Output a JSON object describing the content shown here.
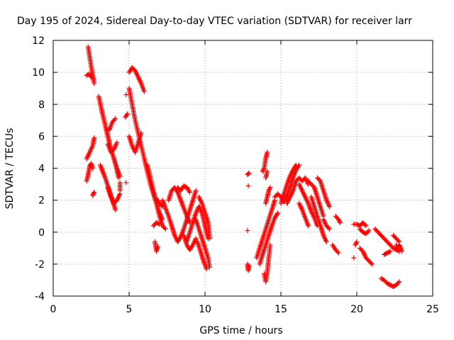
{
  "chart_data": {
    "type": "scatter",
    "title": "Day 195 of 2024, Sidereal Day-to-day VTEC variation (SDTVAR) for receiver larr",
    "xlabel": "GPS time / hours",
    "ylabel": "SDTVAR / TECUs",
    "xlim": [
      0,
      25
    ],
    "ylim": [
      -4,
      12
    ],
    "x_ticks": [
      0,
      5,
      10,
      15,
      20,
      25
    ],
    "y_ticks": [
      -4,
      -2,
      0,
      2,
      4,
      6,
      8,
      10,
      12
    ],
    "grid": true,
    "marker": "+",
    "marker_color": "#ff0000",
    "tracks": [
      [
        [
          2.3,
          11.6
        ],
        [
          2.4,
          11.0
        ],
        [
          2.5,
          10.4
        ],
        [
          2.6,
          9.8
        ],
        [
          2.7,
          9.3
        ]
      ],
      [
        [
          2.2,
          9.8
        ],
        [
          2.35,
          9.9
        ],
        [
          2.5,
          9.7
        ]
      ],
      [
        [
          2.2,
          4.6
        ],
        [
          2.4,
          5.0
        ],
        [
          2.6,
          5.4
        ],
        [
          2.7,
          5.9
        ]
      ],
      [
        [
          2.2,
          3.2
        ],
        [
          2.3,
          3.6
        ],
        [
          2.4,
          4.1
        ],
        [
          2.5,
          4.3
        ],
        [
          2.6,
          4.0
        ]
      ],
      [
        [
          2.6,
          2.3
        ],
        [
          2.7,
          2.5
        ]
      ],
      [
        [
          3.0,
          8.5
        ],
        [
          3.2,
          7.6
        ],
        [
          3.4,
          6.8
        ],
        [
          3.6,
          6.0
        ],
        [
          3.8,
          5.2
        ],
        [
          4.0,
          4.6
        ],
        [
          4.2,
          4.0
        ],
        [
          4.4,
          3.5
        ]
      ],
      [
        [
          3.1,
          4.2
        ],
        [
          3.3,
          3.7
        ],
        [
          3.5,
          3.2
        ],
        [
          3.7,
          2.6
        ],
        [
          3.9,
          2.0
        ],
        [
          4.1,
          1.4
        ]
      ],
      [
        [
          3.6,
          5.5
        ],
        [
          3.8,
          5.0
        ],
        [
          4.0,
          5.2
        ],
        [
          4.2,
          5.6
        ]
      ],
      [
        [
          3.6,
          2.8
        ],
        [
          3.8,
          2.2
        ],
        [
          4.0,
          1.8
        ],
        [
          4.2,
          2.0
        ],
        [
          4.4,
          2.4
        ]
      ],
      [
        [
          3.7,
          6.4
        ],
        [
          3.9,
          6.9
        ],
        [
          4.1,
          7.1
        ]
      ],
      [
        [
          4.0,
          4.6
        ],
        [
          4.2,
          3.9
        ],
        [
          4.3,
          3.4
        ]
      ],
      [
        [
          4.4,
          2.6
        ],
        [
          4.4,
          3.1
        ]
      ],
      [
        [
          4.8,
          3.1
        ]
      ],
      [
        [
          4.8,
          8.6
        ]
      ],
      [
        [
          4.75,
          7.2
        ],
        [
          4.9,
          7.4
        ]
      ],
      [
        [
          5.0,
          10.0
        ],
        [
          5.2,
          10.3
        ],
        [
          5.4,
          10.1
        ],
        [
          5.6,
          9.7
        ],
        [
          5.8,
          9.3
        ],
        [
          6.0,
          8.8
        ]
      ],
      [
        [
          5.0,
          9.0
        ],
        [
          5.2,
          8.0
        ],
        [
          5.4,
          7.0
        ],
        [
          5.6,
          6.2
        ],
        [
          5.8,
          5.4
        ],
        [
          6.0,
          4.6
        ],
        [
          6.2,
          3.8
        ],
        [
          6.4,
          3.0
        ],
        [
          6.6,
          2.4
        ],
        [
          6.8,
          1.8
        ],
        [
          7.0,
          1.2
        ],
        [
          7.2,
          0.8
        ]
      ],
      [
        [
          5.0,
          6.0
        ],
        [
          5.2,
          5.4
        ],
        [
          5.4,
          5.0
        ],
        [
          5.6,
          5.6
        ],
        [
          5.8,
          6.2
        ]
      ],
      [
        [
          6.2,
          4.2
        ],
        [
          6.4,
          3.4
        ],
        [
          6.6,
          2.6
        ],
        [
          6.8,
          1.8
        ],
        [
          7.0,
          1.0
        ],
        [
          7.2,
          0.4
        ],
        [
          7.4,
          0.2
        ]
      ],
      [
        [
          6.6,
          0.4
        ],
        [
          6.8,
          0.6
        ],
        [
          7.0,
          0.5
        ]
      ],
      [
        [
          6.7,
          -0.6
        ],
        [
          6.8,
          -1.2
        ],
        [
          6.9,
          -0.9
        ]
      ],
      [
        [
          6.8,
          2.1
        ],
        [
          7.0,
          1.8
        ],
        [
          7.2,
          1.6
        ]
      ],
      [
        [
          7.2,
          2.0
        ],
        [
          7.4,
          1.5
        ],
        [
          7.6,
          1.0
        ],
        [
          7.8,
          0.4
        ],
        [
          8.0,
          -0.2
        ],
        [
          8.2,
          -0.6
        ],
        [
          8.4,
          -0.3
        ],
        [
          8.6,
          0.2
        ],
        [
          8.8,
          0.8
        ],
        [
          9.0,
          1.4
        ],
        [
          9.2,
          2.0
        ],
        [
          9.4,
          2.6
        ]
      ],
      [
        [
          7.6,
          2.0
        ],
        [
          7.8,
          2.6
        ],
        [
          8.0,
          2.8
        ],
        [
          8.2,
          2.5
        ],
        [
          8.4,
          2.0
        ],
        [
          8.6,
          1.5
        ],
        [
          8.8,
          1.0
        ],
        [
          9.0,
          0.6
        ]
      ],
      [
        [
          8.2,
          2.8
        ],
        [
          8.4,
          2.6
        ],
        [
          8.6,
          2.9
        ],
        [
          8.8,
          2.8
        ],
        [
          9.0,
          2.5
        ]
      ],
      [
        [
          8.8,
          -0.6
        ],
        [
          9.0,
          0.0
        ],
        [
          9.2,
          0.6
        ],
        [
          9.4,
          1.2
        ],
        [
          9.6,
          1.6
        ],
        [
          9.8,
          1.2
        ],
        [
          10.0,
          0.4
        ],
        [
          10.2,
          -0.4
        ]
      ],
      [
        [
          8.6,
          -0.2
        ],
        [
          8.8,
          -0.8
        ],
        [
          9.0,
          -1.1
        ],
        [
          9.2,
          -0.8
        ],
        [
          9.4,
          -0.4
        ]
      ],
      [
        [
          9.4,
          0.8
        ],
        [
          9.6,
          0.2
        ],
        [
          9.8,
          -0.4
        ],
        [
          10.0,
          -1.0
        ],
        [
          10.2,
          -1.6
        ],
        [
          10.3,
          -2.2
        ]
      ],
      [
        [
          9.6,
          2.2
        ],
        [
          9.8,
          1.8
        ],
        [
          10.0,
          1.2
        ],
        [
          10.2,
          0.6
        ],
        [
          10.3,
          -0.4
        ]
      ],
      [
        [
          9.5,
          -0.6
        ],
        [
          9.7,
          -1.2
        ],
        [
          9.9,
          -1.8
        ],
        [
          10.1,
          -2.3
        ]
      ],
      [
        [
          12.8,
          3.6
        ],
        [
          12.9,
          3.7
        ]
      ],
      [
        [
          12.85,
          2.9
        ]
      ],
      [
        [
          12.8,
          0.1
        ]
      ],
      [
        [
          12.8,
          -2.0
        ],
        [
          12.85,
          -2.4
        ],
        [
          12.9,
          -2.1
        ]
      ],
      [
        [
          13.4,
          -1.6
        ],
        [
          13.6,
          -1.0
        ],
        [
          13.8,
          -0.4
        ],
        [
          14.0,
          0.2
        ],
        [
          14.2,
          0.8
        ],
        [
          14.4,
          1.4
        ],
        [
          14.6,
          2.0
        ]
      ],
      [
        [
          13.6,
          -2.0
        ],
        [
          13.8,
          -1.4
        ],
        [
          14.0,
          -0.8
        ],
        [
          14.2,
          -0.2
        ],
        [
          14.4,
          0.4
        ],
        [
          14.6,
          0.9
        ],
        [
          14.8,
          1.2
        ]
      ],
      [
        [
          13.9,
          -2.6
        ],
        [
          14.0,
          -3.1
        ],
        [
          14.1,
          -2.5
        ],
        [
          14.2,
          -1.6
        ],
        [
          14.3,
          -0.8
        ]
      ],
      [
        [
          13.8,
          3.8
        ],
        [
          13.9,
          4.0
        ],
        [
          14.0,
          4.6
        ],
        [
          14.1,
          5.0
        ]
      ],
      [
        [
          14.0,
          3.4
        ],
        [
          14.1,
          3.8
        ]
      ],
      [
        [
          14.0,
          1.8
        ],
        [
          14.1,
          2.2
        ],
        [
          14.2,
          2.6
        ],
        [
          14.3,
          2.8
        ]
      ],
      [
        [
          14.6,
          2.2
        ],
        [
          14.8,
          2.4
        ],
        [
          15.0,
          2.2
        ],
        [
          15.2,
          1.9
        ],
        [
          15.4,
          2.3
        ],
        [
          15.6,
          2.8
        ],
        [
          15.8,
          3.4
        ],
        [
          16.0,
          3.9
        ],
        [
          16.2,
          4.2
        ]
      ],
      [
        [
          15.0,
          1.8
        ],
        [
          15.2,
          2.4
        ],
        [
          15.4,
          3.0
        ],
        [
          15.6,
          3.5
        ],
        [
          15.8,
          3.9
        ],
        [
          16.0,
          4.2
        ]
      ],
      [
        [
          15.4,
          1.8
        ],
        [
          15.6,
          2.2
        ],
        [
          15.8,
          2.6
        ],
        [
          16.0,
          3.2
        ],
        [
          16.2,
          3.4
        ],
        [
          16.4,
          3.2
        ],
        [
          16.6,
          3.4
        ],
        [
          16.8,
          3.0
        ]
      ],
      [
        [
          16.2,
          1.8
        ],
        [
          16.4,
          1.4
        ],
        [
          16.6,
          0.9
        ],
        [
          16.8,
          0.4
        ]
      ],
      [
        [
          16.2,
          3.0
        ],
        [
          16.4,
          2.6
        ],
        [
          16.6,
          2.2
        ],
        [
          16.8,
          1.8
        ],
        [
          17.0,
          1.3
        ],
        [
          17.2,
          0.9
        ],
        [
          17.4,
          0.4
        ]
      ],
      [
        [
          16.8,
          3.2
        ],
        [
          17.0,
          3.0
        ],
        [
          17.2,
          2.8
        ],
        [
          17.4,
          2.2
        ],
        [
          17.6,
          1.6
        ],
        [
          17.8,
          1.0
        ]
      ],
      [
        [
          17.0,
          2.2
        ],
        [
          17.2,
          1.6
        ],
        [
          17.4,
          1.0
        ],
        [
          17.6,
          0.4
        ],
        [
          17.8,
          -0.2
        ],
        [
          18.0,
          -0.6
        ]
      ],
      [
        [
          17.4,
          3.4
        ],
        [
          17.6,
          3.2
        ],
        [
          17.8,
          2.6
        ],
        [
          18.0,
          2.0
        ],
        [
          18.2,
          1.6
        ]
      ],
      [
        [
          17.8,
          0.8
        ],
        [
          18.0,
          0.4
        ],
        [
          18.2,
          0.2
        ]
      ],
      [
        [
          18.4,
          -0.8
        ],
        [
          18.6,
          -1.1
        ],
        [
          18.8,
          -1.3
        ]
      ],
      [
        [
          18.6,
          1.0
        ],
        [
          18.8,
          0.8
        ],
        [
          18.9,
          0.6
        ]
      ],
      [
        [
          19.8,
          0.5
        ],
        [
          20.0,
          0.5
        ],
        [
          20.2,
          0.4
        ],
        [
          20.4,
          0.6
        ],
        [
          20.6,
          0.4
        ]
      ],
      [
        [
          19.8,
          -1.6
        ]
      ],
      [
        [
          19.9,
          -0.8
        ],
        [
          20.0,
          -0.6
        ]
      ],
      [
        [
          20.2,
          0.2
        ],
        [
          20.4,
          0.0
        ],
        [
          20.6,
          -0.1
        ],
        [
          20.8,
          0.1
        ]
      ],
      [
        [
          20.2,
          -1.0
        ],
        [
          20.4,
          -1.2
        ],
        [
          20.6,
          -1.6
        ],
        [
          20.8,
          -1.8
        ],
        [
          21.0,
          -2.0
        ]
      ],
      [
        [
          21.2,
          0.2
        ],
        [
          21.4,
          0.0
        ],
        [
          21.6,
          -0.2
        ],
        [
          21.8,
          -0.4
        ],
        [
          22.0,
          -0.6
        ],
        [
          22.2,
          -0.8
        ],
        [
          22.4,
          -1.0
        ],
        [
          22.6,
          -1.1
        ],
        [
          22.8,
          -1.2
        ]
      ],
      [
        [
          21.8,
          -1.4
        ],
        [
          22.0,
          -1.3
        ],
        [
          22.2,
          -1.2
        ]
      ],
      [
        [
          21.6,
          -2.9
        ],
        [
          21.8,
          -3.0
        ],
        [
          22.0,
          -3.2
        ],
        [
          22.2,
          -3.3
        ],
        [
          22.4,
          -3.4
        ],
        [
          22.6,
          -3.3
        ],
        [
          22.8,
          -3.1
        ]
      ],
      [
        [
          22.6,
          -0.8
        ],
        [
          22.7,
          -1.0
        ],
        [
          22.8,
          -0.8
        ],
        [
          22.9,
          -1.0
        ],
        [
          22.95,
          -1.2
        ]
      ],
      [
        [
          22.4,
          -0.2
        ],
        [
          22.6,
          -0.4
        ],
        [
          22.8,
          -0.6
        ]
      ]
    ]
  }
}
